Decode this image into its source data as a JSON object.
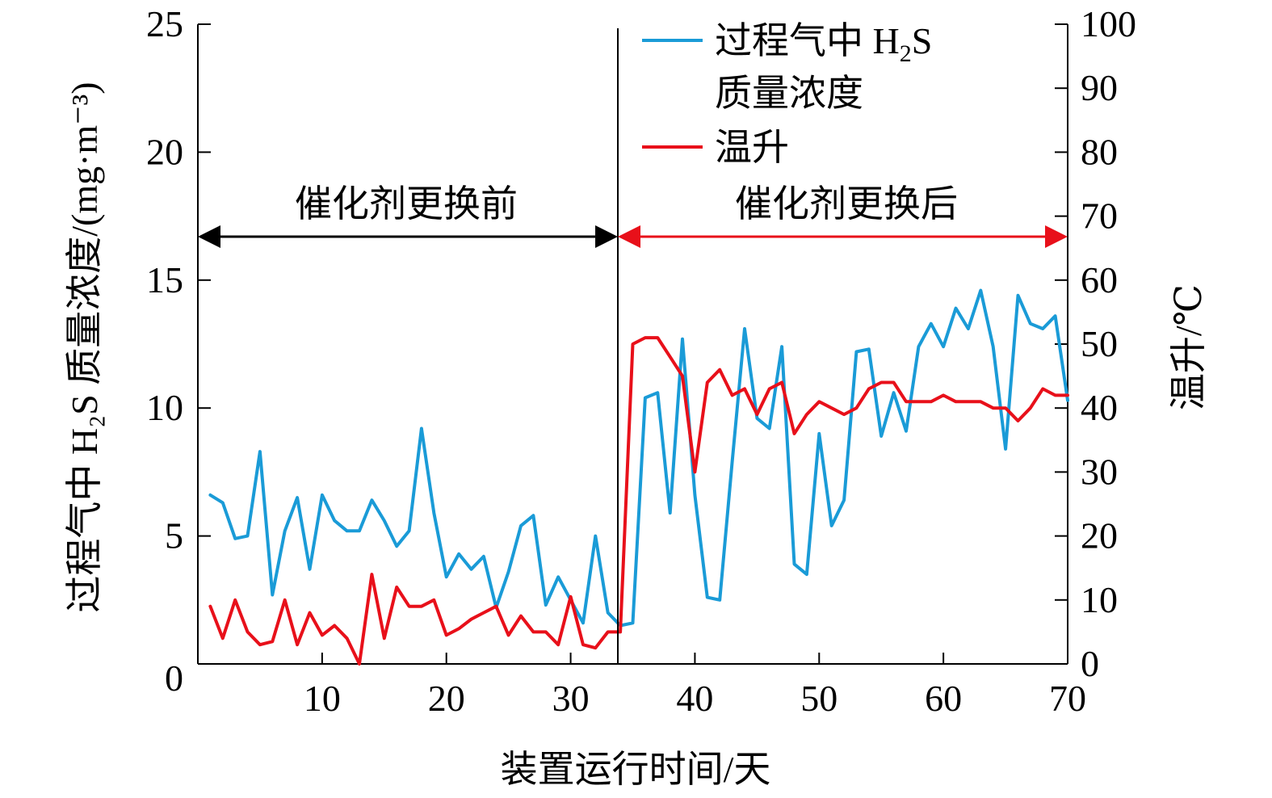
{
  "chart_data": {
    "type": "line",
    "xlabel": "装置运行时间/天",
    "ylabel_left": "过程气中 H₂S 质量浓度/(mg·m⁻³)",
    "ylabel_right": "温升/℃",
    "xlim": [
      0,
      70
    ],
    "ylim_left": [
      0,
      25
    ],
    "ylim_right": [
      0,
      100
    ],
    "x_ticks": [
      10,
      20,
      30,
      40,
      50,
      60,
      70
    ],
    "y_left_ticks": [
      0,
      5,
      10,
      15,
      20,
      25
    ],
    "y_right_ticks": [
      0,
      10,
      20,
      30,
      40,
      50,
      60,
      70,
      80,
      90,
      100
    ],
    "grid": false,
    "legend_position": "top-right",
    "divider_x": 33.8,
    "annotations": [
      {
        "text": "催化剂更换前",
        "x_from": 0,
        "x_to": 33.8,
        "color": "#000000"
      },
      {
        "text": "催化剂更换后",
        "x_from": 33.8,
        "x_to": 70,
        "color": "#e8101a"
      }
    ],
    "series": [
      {
        "name": "过程气中 H₂S 质量浓度",
        "name_main": "过程气中 H",
        "name_sub": "2",
        "name_tail": "S",
        "name_line2": "质量浓度",
        "axis": "left",
        "color": "#1a9bd7",
        "x": [
          1,
          2,
          3,
          4,
          5,
          6,
          7,
          8,
          9,
          10,
          11,
          12,
          13,
          14,
          15,
          16,
          17,
          18,
          19,
          20,
          21,
          22,
          23,
          24,
          25,
          26,
          27,
          28,
          29,
          30,
          31,
          32,
          33,
          34,
          35,
          36,
          37,
          38,
          39,
          40,
          41,
          42,
          43,
          44,
          45,
          46,
          47,
          48,
          49,
          50,
          51,
          52,
          53,
          54,
          55,
          56,
          57,
          58,
          59,
          60,
          61,
          62,
          63,
          64,
          65,
          66,
          67,
          68,
          69,
          70
        ],
        "values": [
          6.6,
          6.3,
          4.9,
          5.0,
          8.3,
          2.7,
          5.2,
          6.5,
          3.7,
          6.6,
          5.6,
          5.2,
          5.2,
          6.4,
          5.6,
          4.6,
          5.2,
          9.2,
          5.9,
          3.4,
          4.3,
          3.7,
          4.2,
          2.2,
          3.6,
          5.4,
          5.8,
          2.3,
          3.4,
          2.5,
          1.6,
          5.0,
          2.0,
          1.5,
          1.6,
          10.4,
          10.6,
          5.9,
          12.7,
          6.6,
          2.6,
          2.5,
          7.9,
          13.1,
          9.6,
          9.2,
          12.4,
          3.9,
          3.5,
          9.0,
          5.4,
          6.4,
          12.2,
          12.3,
          8.9,
          10.6,
          9.1,
          12.4,
          13.3,
          12.4,
          13.9,
          13.1,
          14.6,
          12.4,
          8.4,
          14.4,
          13.3,
          13.1,
          13.6,
          10.3
        ]
      },
      {
        "name": "温升",
        "axis": "right",
        "color": "#e8101a",
        "x": [
          1,
          2,
          3,
          4,
          5,
          6,
          7,
          8,
          9,
          10,
          11,
          12,
          13,
          14,
          15,
          16,
          17,
          18,
          19,
          20,
          21,
          22,
          23,
          24,
          25,
          26,
          27,
          28,
          29,
          30,
          31,
          32,
          33,
          34,
          35,
          36,
          37,
          38,
          39,
          40,
          41,
          42,
          43,
          44,
          45,
          46,
          47,
          48,
          49,
          50,
          51,
          52,
          53,
          54,
          55,
          56,
          57,
          58,
          59,
          60,
          61,
          62,
          63,
          64,
          65,
          66,
          67,
          68,
          69,
          70
        ],
        "values": [
          9,
          4,
          10,
          5,
          3,
          3.5,
          10,
          3,
          8,
          4.5,
          6,
          4,
          0,
          14,
          4,
          12,
          9,
          9,
          10,
          4.5,
          5.5,
          7,
          8,
          9,
          4.5,
          7.5,
          5,
          5,
          3,
          10.5,
          3,
          2.5,
          5,
          5,
          50,
          51,
          51,
          48,
          45,
          30,
          44,
          46,
          42,
          43,
          39,
          43,
          44,
          36,
          39,
          41,
          40,
          39,
          40,
          43,
          44,
          44,
          41,
          41,
          41,
          42,
          41,
          41,
          41,
          40,
          40,
          38,
          40,
          43,
          42,
          42
        ]
      }
    ]
  }
}
